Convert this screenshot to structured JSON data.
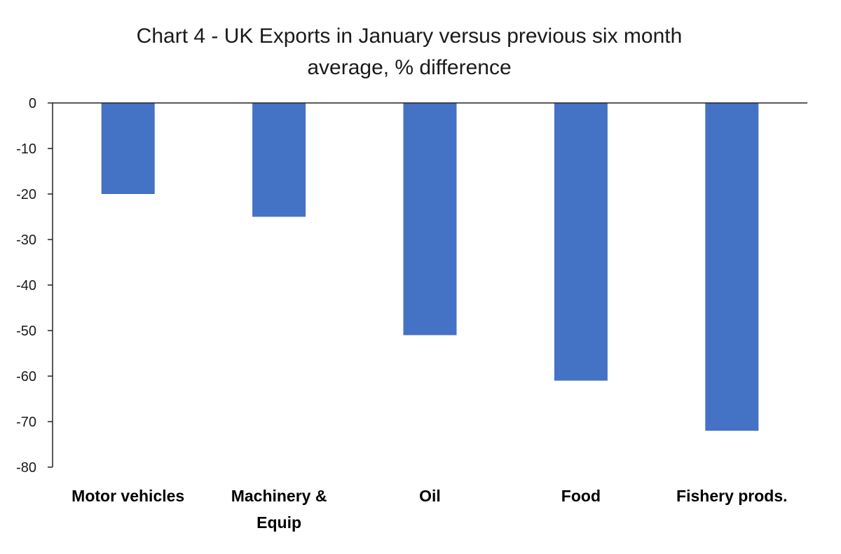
{
  "colors": {
    "bar": "#4472C4",
    "axis": "#222222",
    "text": "#1a1a1a"
  },
  "chart_data": {
    "type": "bar",
    "title": "Chart 4 - UK Exports in January versus previous six month average, % difference",
    "title_lines": [
      "Chart 4 - UK Exports in January versus previous six month",
      "average, % difference"
    ],
    "xlabel": "",
    "ylabel": "",
    "categories": [
      "Motor vehicles",
      "Machinery & Equip",
      "Oil",
      "Food",
      "Fishery prods."
    ],
    "category_lines": [
      [
        "Motor vehicles"
      ],
      [
        "Machinery &",
        "Equip"
      ],
      [
        "Oil"
      ],
      [
        "Food"
      ],
      [
        "Fishery prods."
      ]
    ],
    "values": [
      -20,
      -25,
      -51,
      -61,
      -72
    ],
    "ylim": [
      -80,
      0
    ],
    "yticks": [
      0,
      -10,
      -20,
      -30,
      -40,
      -50,
      -60,
      -70,
      -80
    ],
    "grid": false,
    "legend": "none"
  }
}
